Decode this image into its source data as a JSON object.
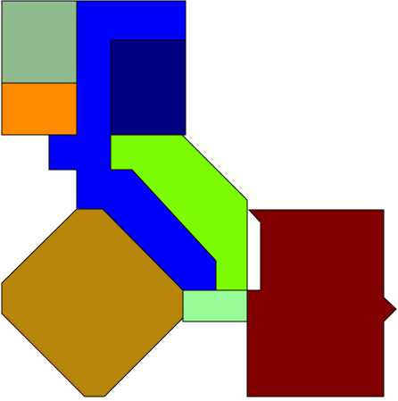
{
  "diagram": {
    "background": "#ffffff",
    "outline_color": "#000000",
    "shapes": [
      {
        "name": "sage-green-rectangle",
        "fill": "#8fbc8f"
      },
      {
        "name": "orange-rectangle",
        "fill": "#ff8c00"
      },
      {
        "name": "blue-bent-polygon",
        "fill": "#0000ff"
      },
      {
        "name": "navy-rectangle",
        "fill": "#000080"
      },
      {
        "name": "lime-green-polygon",
        "fill": "#7cfc00"
      },
      {
        "name": "goldenrod-octagon",
        "fill": "#b8860b"
      },
      {
        "name": "light-green-rectangle",
        "fill": "#98fb98"
      },
      {
        "name": "maroon-notched-polygon",
        "fill": "#800000"
      }
    ]
  }
}
